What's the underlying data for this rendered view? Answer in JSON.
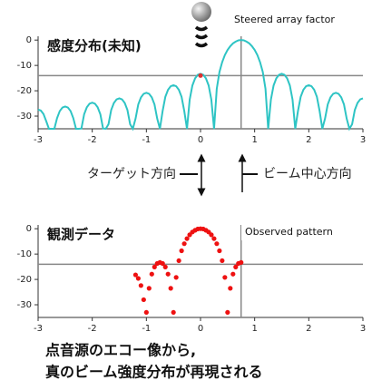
{
  "top_chart": {
    "type": "line",
    "legend_label": "Steered array factor",
    "panel_label": "感度分布(未知)",
    "color": "#2ec4c4",
    "x": [
      -3.0,
      -2.95,
      -2.9,
      -2.85,
      -2.8,
      -2.75,
      -2.7,
      -2.65,
      -2.6,
      -2.55,
      -2.5,
      -2.45,
      -2.4,
      -2.35,
      -2.3,
      -2.25,
      -2.2,
      -2.15,
      -2.1,
      -2.05,
      -2.0,
      -1.95,
      -1.9,
      -1.85,
      -1.8,
      -1.75,
      -1.7,
      -1.65,
      -1.6,
      -1.55,
      -1.5,
      -1.45,
      -1.4,
      -1.35,
      -1.3,
      -1.25,
      -1.2,
      -1.15,
      -1.1,
      -1.05,
      -1.0,
      -0.95,
      -0.9,
      -0.85,
      -0.8,
      -0.75,
      -0.7,
      -0.65,
      -0.6,
      -0.55,
      -0.5,
      -0.45,
      -0.4,
      -0.35,
      -0.3,
      -0.25,
      -0.2,
      -0.15,
      -0.1,
      -0.05,
      0.0,
      0.05,
      0.1,
      0.15,
      0.2,
      0.25,
      0.3,
      0.35,
      0.4,
      0.45,
      0.5,
      0.55,
      0.6,
      0.65,
      0.7,
      0.75,
      0.8,
      0.85,
      0.9,
      0.95,
      1.0,
      1.05,
      1.1,
      1.15,
      1.2,
      1.25,
      1.3,
      1.35,
      1.4,
      1.45,
      1.5,
      1.55,
      1.6,
      1.65,
      1.7,
      1.75,
      1.8,
      1.85,
      1.9,
      1.95,
      2.0,
      2.05,
      2.1,
      2.15,
      2.2,
      2.25,
      2.3,
      2.35,
      2.4,
      2.45,
      2.5,
      2.55,
      2.6,
      2.65,
      2.7,
      2.75,
      2.8,
      2.85,
      2.9,
      2.95,
      3.0
    ],
    "y": [
      -27.4,
      -27.8,
      -29.2,
      -32.0,
      -35,
      -35,
      -35,
      -30.8,
      -28.0,
      -26.6,
      -26.2,
      -26.6,
      -28.0,
      -30.8,
      -35,
      -35,
      -34.9,
      -29.3,
      -26.5,
      -25.1,
      -24.7,
      -25.1,
      -26.5,
      -29.3,
      -34.9,
      -35,
      -33.2,
      -27.6,
      -24.8,
      -23.4,
      -23.0,
      -23.4,
      -24.8,
      -27.6,
      -33.2,
      -35,
      -31.0,
      -25.4,
      -22.6,
      -21.2,
      -20.8,
      -21.2,
      -22.6,
      -25.4,
      -31.0,
      -35,
      -28.0,
      -22.4,
      -19.6,
      -18.2,
      -17.8,
      -18.2,
      -19.6,
      -22.4,
      -28.0,
      -35,
      -23.5,
      -17.9,
      -15.1,
      -13.7,
      -13.3,
      -13.7,
      -15.1,
      -17.9,
      -23.5,
      -35,
      -19.2,
      -12.6,
      -8.7,
      -5.9,
      -3.9,
      -2.4,
      -1.3,
      -0.6,
      -0.1,
      0,
      -0.1,
      -0.6,
      -1.3,
      -2.4,
      -3.9,
      -5.9,
      -8.7,
      -12.6,
      -19.2,
      -35,
      -23.5,
      -17.9,
      -15.1,
      -13.7,
      -13.3,
      -13.7,
      -15.1,
      -17.9,
      -23.5,
      -35,
      -28.0,
      -22.4,
      -19.6,
      -18.2,
      -17.8,
      -18.2,
      -19.6,
      -22.4,
      -28.0,
      -35,
      -31.0,
      -25.4,
      -22.6,
      -21.2,
      -20.8,
      -21.2,
      -22.6,
      -25.4,
      -31.0,
      -35,
      -33.2,
      -27.6,
      -24.8,
      -23.4,
      -23.0
    ],
    "xlim": [
      -3,
      3
    ],
    "ylim": [
      -35,
      1.5
    ],
    "xticks": [
      -3,
      -2,
      -1,
      0,
      1,
      2,
      3
    ],
    "yticks": [
      0,
      -10,
      -20,
      -30
    ],
    "ref_x": 0.75,
    "ref_y": -14,
    "marker": {
      "x": 0,
      "y": -14,
      "color": "#e03030"
    }
  },
  "bottom_chart": {
    "type": "scatter",
    "legend_label": "Observed pattern",
    "panel_label": "観測データ",
    "color": "#ee1111",
    "x": [
      -1.2,
      -1.15,
      -1.1,
      -1.05,
      -1.0,
      -0.95,
      -0.9,
      -0.85,
      -0.8,
      -0.75,
      -0.7,
      -0.65,
      -0.6,
      -0.55,
      -0.5,
      -0.45,
      -0.4,
      -0.35,
      -0.3,
      -0.25,
      -0.2,
      -0.15,
      -0.1,
      -0.05,
      0.0,
      0.05,
      0.1,
      0.15,
      0.2,
      0.25,
      0.3,
      0.35,
      0.4,
      0.45,
      0.5,
      0.55,
      0.6,
      0.65,
      0.7,
      0.75
    ],
    "y": [
      -18.2,
      -19.6,
      -22.4,
      -28.0,
      -33,
      -23.5,
      -17.9,
      -15.1,
      -13.7,
      -13.3,
      -13.7,
      -15.1,
      -17.9,
      -23.5,
      -33,
      -19.2,
      -12.6,
      -8.7,
      -5.9,
      -3.9,
      -2.4,
      -1.3,
      -0.6,
      -0.1,
      0,
      -0.1,
      -0.6,
      -1.3,
      -2.4,
      -3.9,
      -5.9,
      -8.7,
      -12.6,
      -19.2,
      -33,
      -23.5,
      -17.9,
      -15.1,
      -13.7,
      -13.3
    ],
    "xlim": [
      -3,
      3
    ],
    "ylim": [
      -35,
      1.5
    ],
    "xticks": [
      -3,
      -2,
      -1,
      0,
      1,
      2,
      3
    ],
    "yticks": [
      0,
      -10,
      -20,
      -30
    ],
    "ref_x": 0.75,
    "ref_y": -14
  },
  "arrows": {
    "target": "ターゲット方向",
    "beam": "ビーム中心方向"
  },
  "caption": [
    "点音源のエコー像から,",
    "真のビーム強度分布が再現される"
  ]
}
